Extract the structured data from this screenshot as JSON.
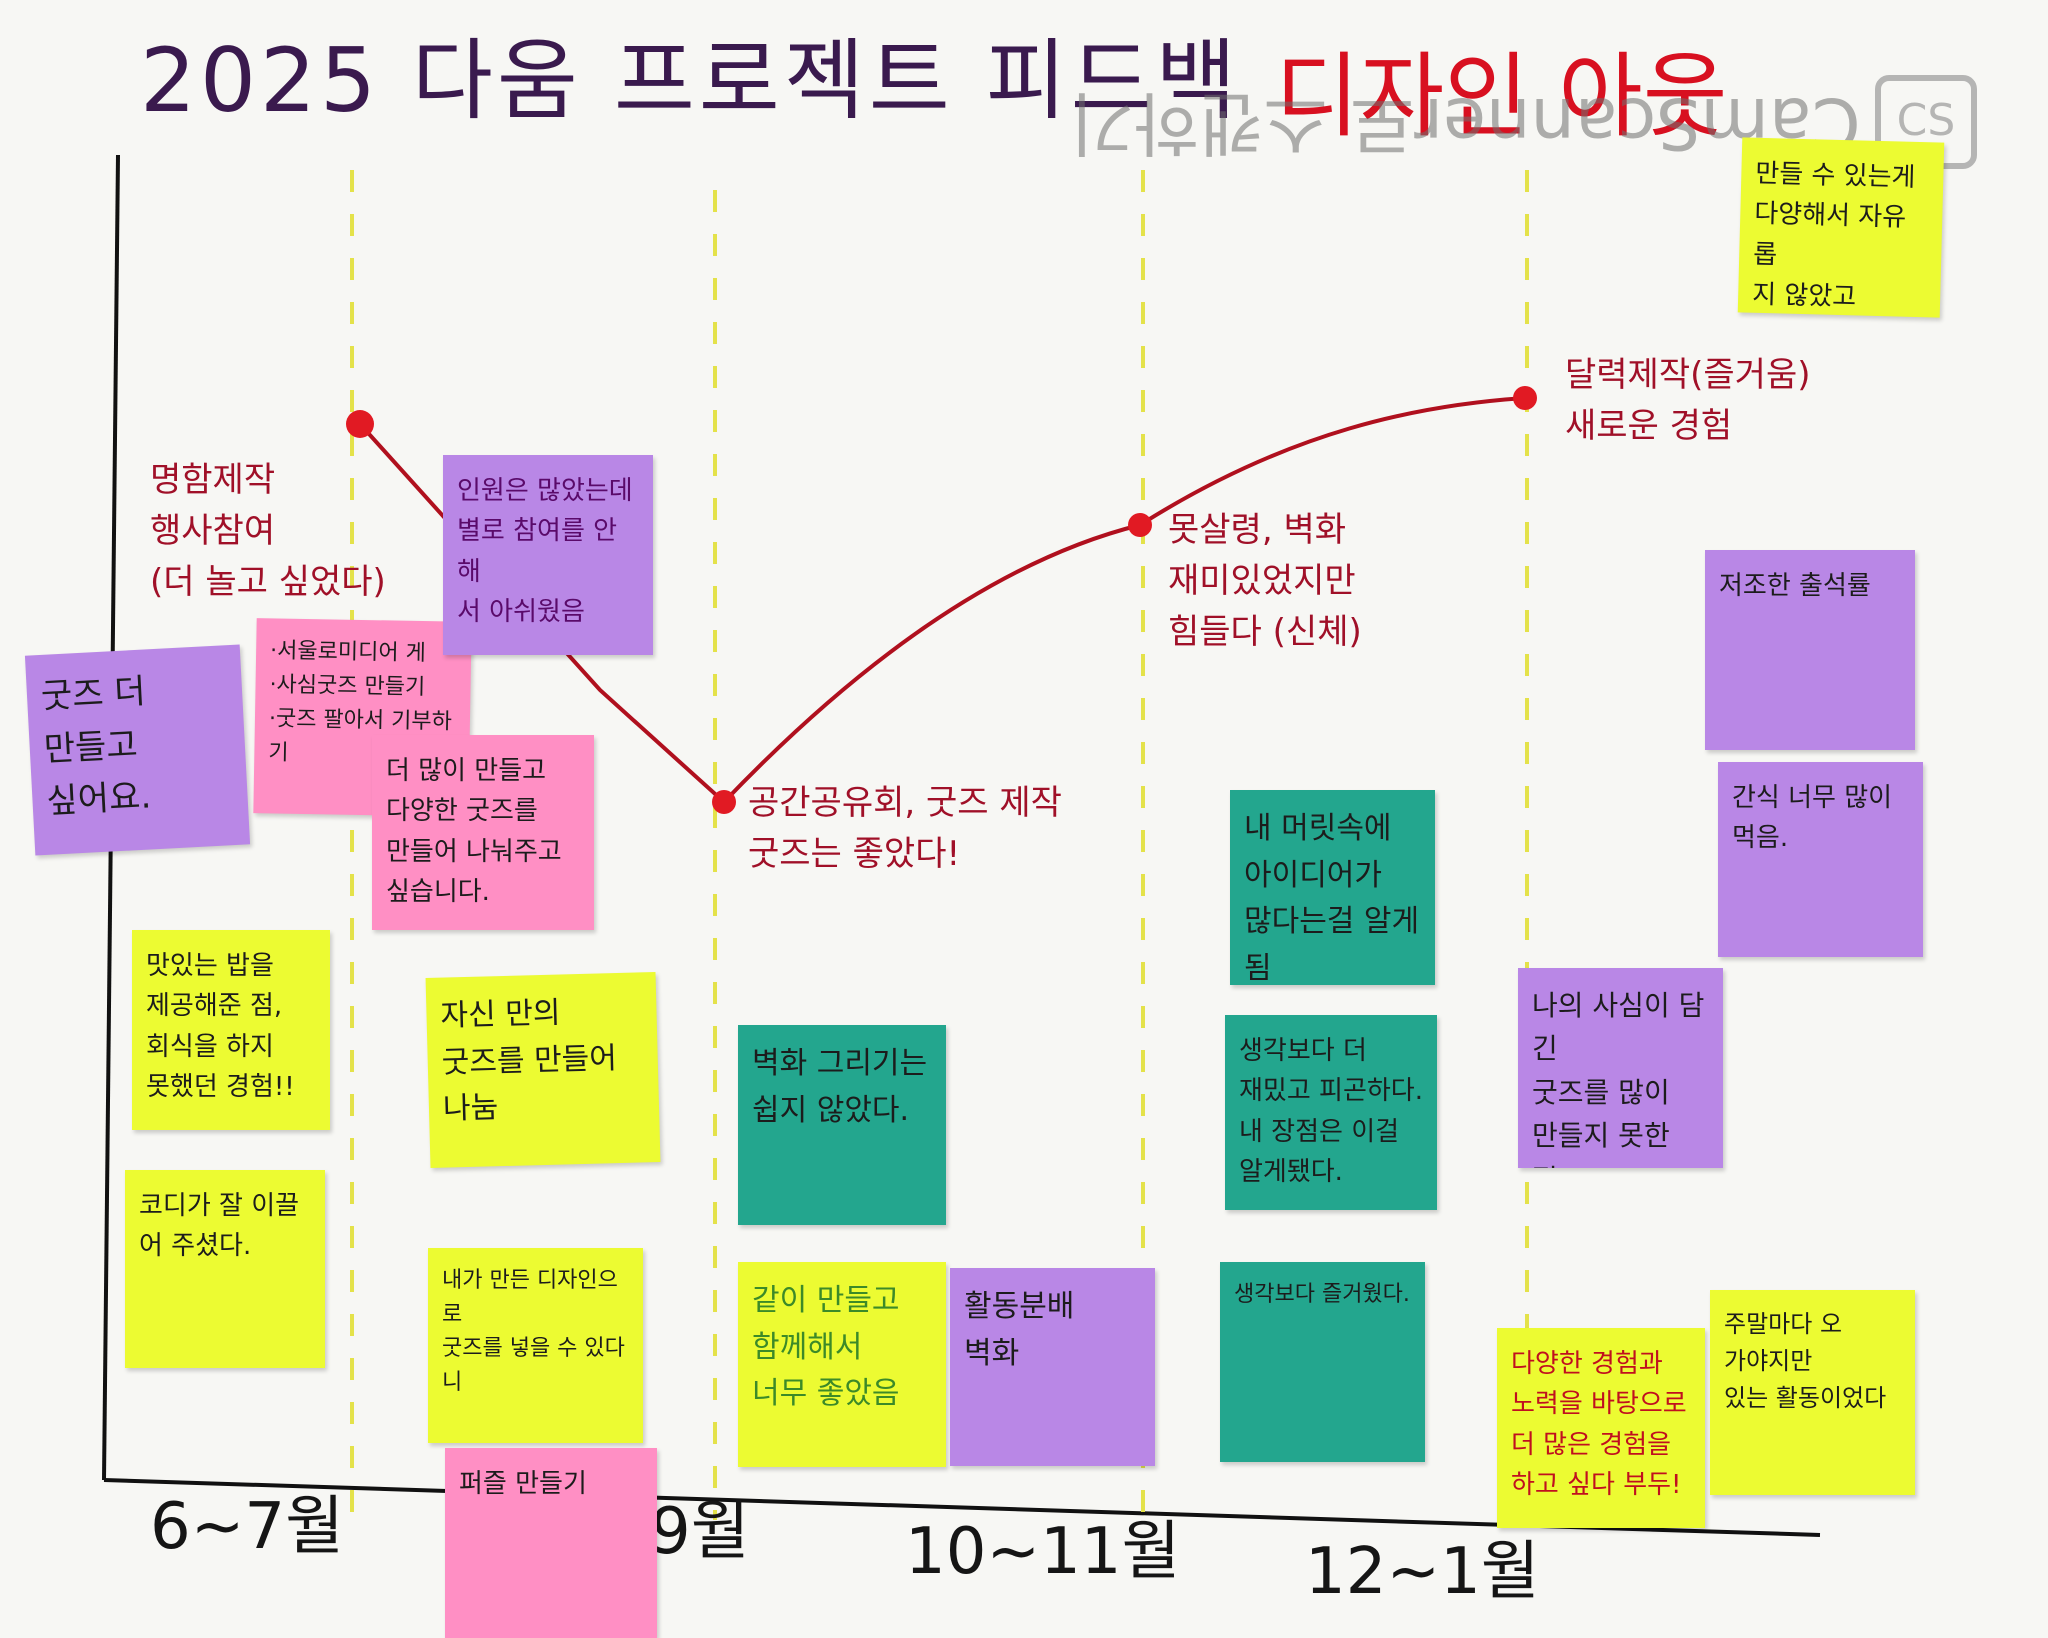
{
  "title": {
    "main": "2025 다움 프로젝트 피드백",
    "team": "디자인 아웃"
  },
  "watermark": {
    "text": "CamScanner로 스캔하기",
    "badge": "CS"
  },
  "axis": {
    "ticks": [
      "6~7월",
      "9월",
      "10~11월",
      "12~1월"
    ]
  },
  "curve_labels": {
    "p1": "명함제작\n행사참여\n(더 놀고 싶었다)",
    "p2": "공간공유회, 굿즈 제작\n굿즈는 좋았다!",
    "p3": "못살령, 벽화\n재미있었지만\n힘들다 (신체)",
    "p4": "달력제작(즐거움)\n새로운 경험"
  },
  "notes": {
    "n1": "굿즈 더\n만들고\n싶어요.",
    "n2": "·서울로미디어 게\n·사심굿즈 만들기\n·굿즈 팔아서 기부하기",
    "n3": "인원은 많았는데\n별로 참여를 안해\n서 아쉬웠음",
    "n4": "더 많이 만들고\n다양한 굿즈를\n만들어 나눠주고\n싶습니다.",
    "n5": "맛있는 밥을\n제공해준 점,\n회식을 하지\n못했던 경험!!",
    "n6": "자신 만의\n굿즈를 만들어\n나눔",
    "n7": "코디가 잘 이끌\n어 주셨다.",
    "n8": "내가 만든 디자인으로\n굿즈를 넣을 수 있다니",
    "n9": "퍼즐 만들기",
    "n10": "벽화 그리기는\n쉽지 않았다.",
    "n11": "같이 만들고\n함께해서\n너무 좋았음",
    "n12": "활동분배\n벽화",
    "n13": "내 머릿속에\n아이디어가\n많다는걸 알게됨",
    "n14": "생각보다 더\n재밌고 피곤하다.\n내 장점은 이걸\n알게됐다.",
    "n15": "생각보다 즐거웠다.",
    "n16": "나의 사심이 담긴\n굿즈를 많이\n만들지 못한 점.",
    "n17": "만들 수 있는게\n다양해서 자유롭\n지 않았고\n만족스러웠",
    "n18": "저조한 출석률",
    "n19": "간식 너무 많이\n먹음.",
    "n20": "다양한 경험과\n노력을 바탕으로\n더 많은 경험을\n하고 싶다 부두!",
    "n21": "주말마다 오\n가야지만\n있는 활동이었다"
  },
  "colors": {
    "curve": "#b0101e",
    "point": "#e11a23",
    "yellow_note": "#ecfb32",
    "purple_note": "#b987e6",
    "pink_note": "#ff8fc4",
    "green_note": "#23a68e",
    "divider": "#e4e24a"
  }
}
